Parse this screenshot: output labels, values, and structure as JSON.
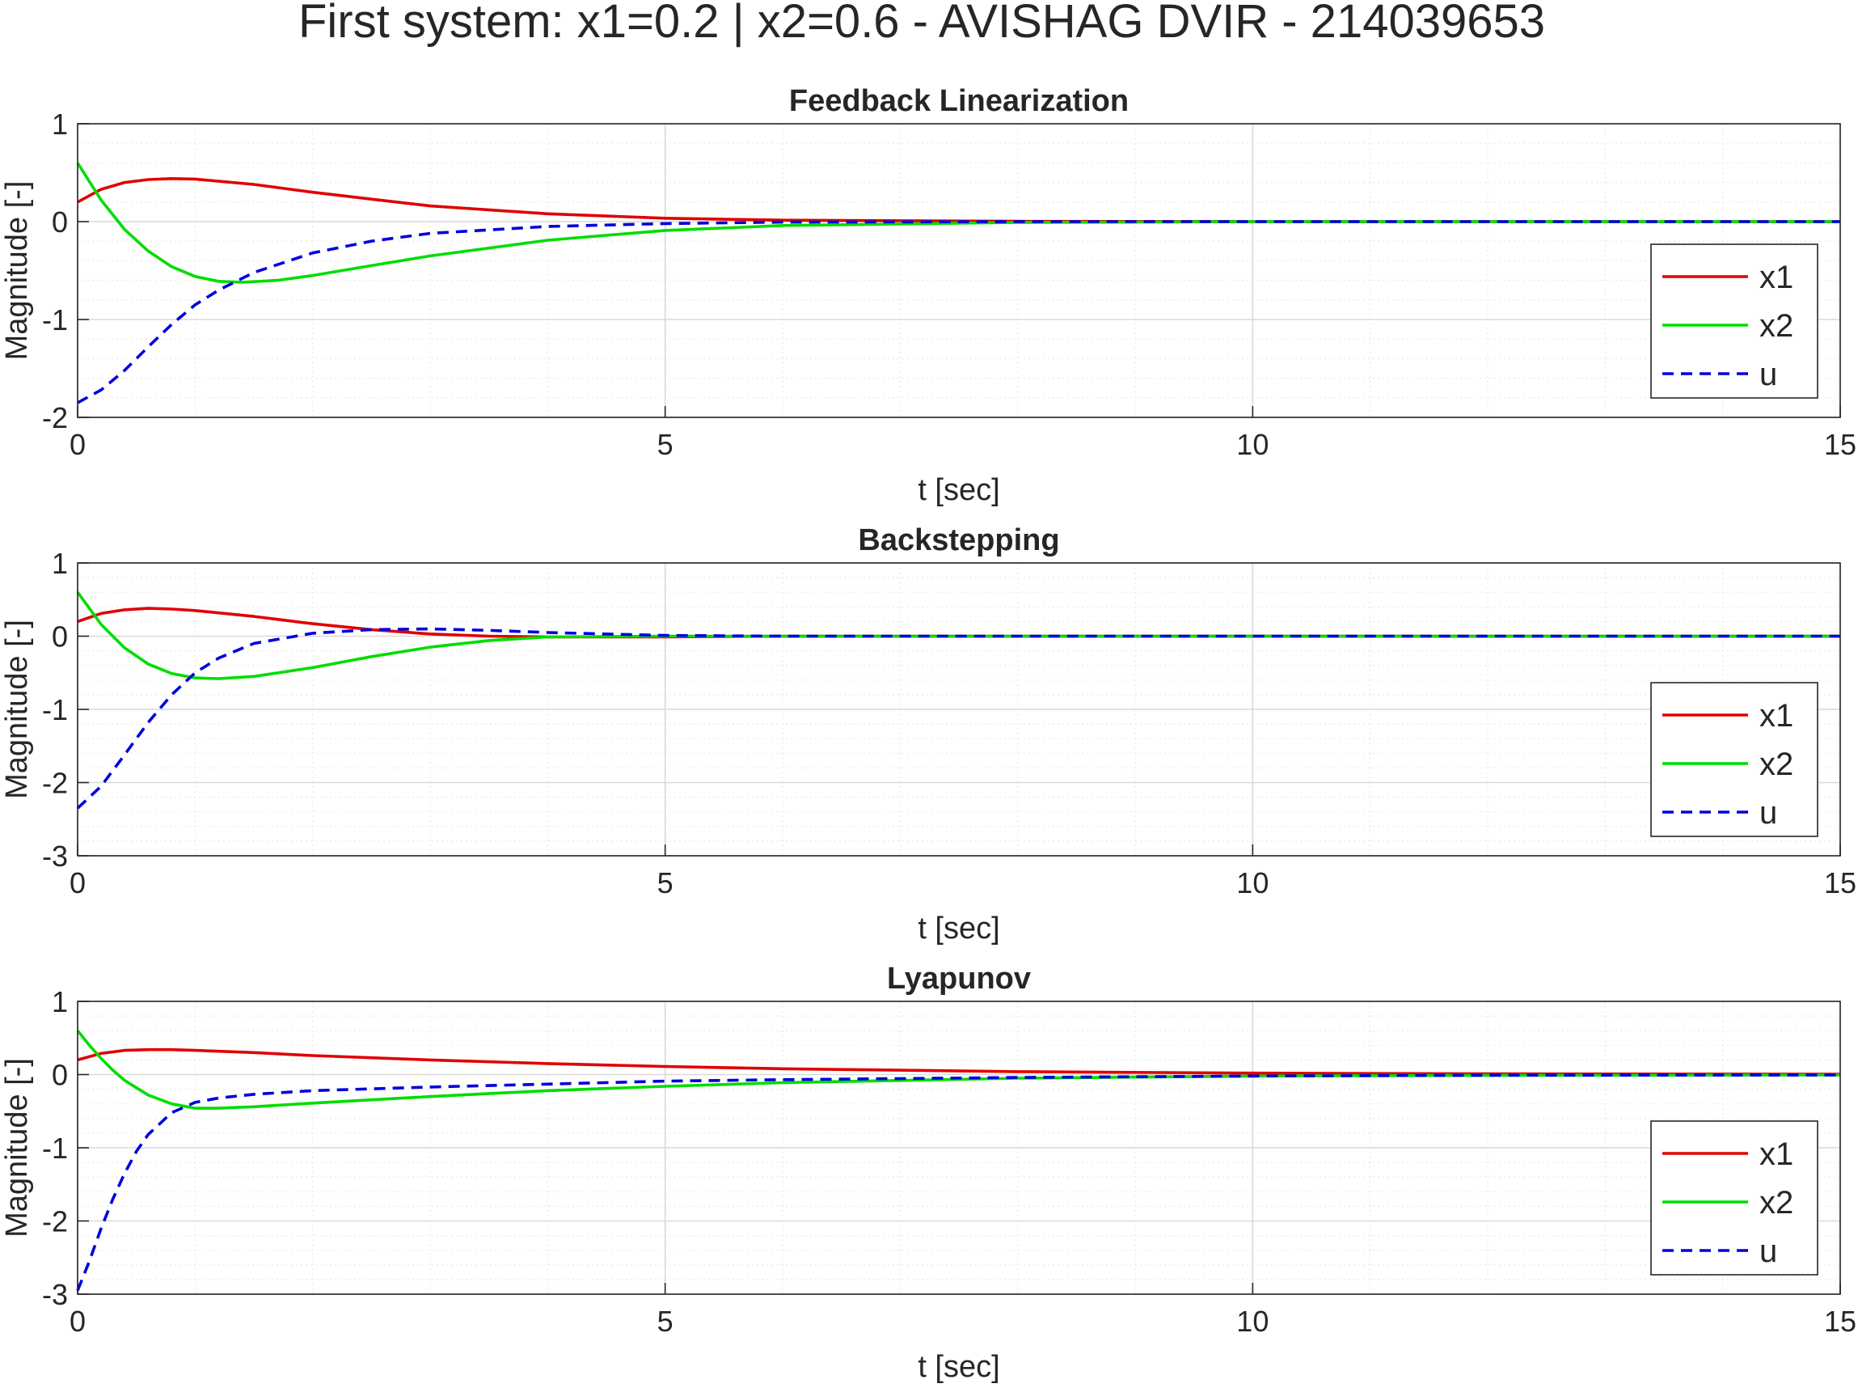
{
  "figure": {
    "title": "First system: x1=0.2 | x2=0.6 - AVISHAG DVIR - 214039653"
  },
  "colors": {
    "x1": "#e00000",
    "x2": "#00dd00",
    "u": "#0000dd",
    "axis": "#262626",
    "grid_major": "#d9d9d9",
    "grid_minor": "#e9e9e9"
  },
  "chart_data": [
    {
      "type": "line",
      "title": "Feedback Linearization",
      "xlabel": "t [sec]",
      "ylabel": "Magnitude [-]",
      "xlim": [
        0,
        15
      ],
      "ylim": [
        -2,
        1
      ],
      "xticks": [
        0,
        5,
        10,
        15
      ],
      "yticks": [
        -2,
        -1,
        0,
        1
      ],
      "grid": true,
      "minor_grid": true,
      "legend_position": "bottom-right",
      "series": [
        {
          "name": "x1",
          "style": "solid",
          "color": "#e00000",
          "x": [
            0,
            0.2,
            0.4,
            0.6,
            0.8,
            1.0,
            1.5,
            2.0,
            2.5,
            3.0,
            4.0,
            5.0,
            6.0,
            8.0,
            10.0,
            15.0
          ],
          "y": [
            0.2,
            0.33,
            0.4,
            0.43,
            0.44,
            0.435,
            0.38,
            0.3,
            0.23,
            0.16,
            0.08,
            0.035,
            0.015,
            0.003,
            0.0,
            0.0
          ]
        },
        {
          "name": "x2",
          "style": "solid",
          "color": "#00dd00",
          "x": [
            0,
            0.2,
            0.4,
            0.6,
            0.8,
            1.0,
            1.2,
            1.4,
            1.7,
            2.0,
            2.5,
            3.0,
            4.0,
            5.0,
            6.0,
            8.0,
            10.0,
            15.0
          ],
          "y": [
            0.6,
            0.22,
            -0.08,
            -0.3,
            -0.46,
            -0.56,
            -0.61,
            -0.62,
            -0.6,
            -0.55,
            -0.45,
            -0.35,
            -0.19,
            -0.09,
            -0.04,
            -0.008,
            0.0,
            0.0
          ]
        },
        {
          "name": "u",
          "style": "dashed",
          "color": "#0000dd",
          "x": [
            0,
            0.2,
            0.4,
            0.6,
            0.8,
            1.0,
            1.2,
            1.5,
            2.0,
            2.5,
            3.0,
            4.0,
            5.0,
            6.0,
            8.0,
            10.0,
            15.0
          ],
          "y": [
            -1.85,
            -1.72,
            -1.52,
            -1.28,
            -1.05,
            -0.85,
            -0.7,
            -0.52,
            -0.32,
            -0.2,
            -0.12,
            -0.05,
            -0.02,
            -0.005,
            0.0,
            0.0,
            0.0
          ]
        }
      ]
    },
    {
      "type": "line",
      "title": "Backstepping",
      "xlabel": "t [sec]",
      "ylabel": "Magnitude [-]",
      "xlim": [
        0,
        15
      ],
      "ylim": [
        -3,
        1
      ],
      "xticks": [
        0,
        5,
        10,
        15
      ],
      "yticks": [
        -3,
        -2,
        -1,
        0,
        1
      ],
      "grid": true,
      "minor_grid": true,
      "legend_position": "bottom-right",
      "series": [
        {
          "name": "x1",
          "style": "solid",
          "color": "#e00000",
          "x": [
            0,
            0.2,
            0.4,
            0.6,
            0.8,
            1.0,
            1.5,
            2.0,
            2.5,
            3.0,
            3.5,
            4.0,
            5.0,
            6.0,
            8.0,
            15.0
          ],
          "y": [
            0.2,
            0.31,
            0.36,
            0.38,
            0.37,
            0.35,
            0.27,
            0.17,
            0.09,
            0.03,
            0.0,
            -0.01,
            -0.01,
            0.0,
            0.0,
            0.0
          ]
        },
        {
          "name": "x2",
          "style": "solid",
          "color": "#00dd00",
          "x": [
            0,
            0.2,
            0.4,
            0.6,
            0.8,
            1.0,
            1.2,
            1.5,
            2.0,
            2.5,
            3.0,
            3.5,
            4.0,
            5.0,
            6.0,
            8.0,
            15.0
          ],
          "y": [
            0.6,
            0.16,
            -0.16,
            -0.38,
            -0.51,
            -0.57,
            -0.58,
            -0.55,
            -0.43,
            -0.28,
            -0.15,
            -0.06,
            -0.01,
            0.0,
            0.0,
            0.0,
            0.0
          ]
        },
        {
          "name": "u",
          "style": "dashed",
          "color": "#0000dd",
          "x": [
            0,
            0.2,
            0.4,
            0.6,
            0.8,
            1.0,
            1.2,
            1.5,
            2.0,
            2.5,
            3.0,
            3.5,
            4.0,
            5.0,
            6.0,
            8.0,
            15.0
          ],
          "y": [
            -2.35,
            -2.05,
            -1.62,
            -1.18,
            -0.8,
            -0.5,
            -0.3,
            -0.1,
            0.04,
            0.09,
            0.1,
            0.08,
            0.05,
            0.01,
            0.0,
            0.0,
            0.0
          ]
        }
      ]
    },
    {
      "type": "line",
      "title": "Lyapunov",
      "xlabel": "t [sec]",
      "ylabel": "Magnitude [-]",
      "xlim": [
        0,
        15
      ],
      "ylim": [
        -3,
        1
      ],
      "xticks": [
        0,
        5,
        10,
        15
      ],
      "yticks": [
        -3,
        -2,
        -1,
        0,
        1
      ],
      "grid": true,
      "minor_grid": true,
      "legend_position": "bottom-right",
      "series": [
        {
          "name": "x1",
          "style": "solid",
          "color": "#e00000",
          "x": [
            0,
            0.2,
            0.4,
            0.6,
            0.8,
            1.0,
            1.5,
            2.0,
            3.0,
            4.0,
            5.0,
            6.0,
            8.0,
            10.0,
            12.0,
            15.0
          ],
          "y": [
            0.2,
            0.29,
            0.33,
            0.34,
            0.34,
            0.33,
            0.3,
            0.26,
            0.2,
            0.15,
            0.11,
            0.08,
            0.04,
            0.02,
            0.01,
            0.005
          ]
        },
        {
          "name": "x2",
          "style": "solid",
          "color": "#00dd00",
          "x": [
            0,
            0.1,
            0.2,
            0.3,
            0.4,
            0.6,
            0.8,
            1.0,
            1.2,
            1.5,
            2.0,
            3.0,
            4.0,
            5.0,
            6.0,
            8.0,
            10.0,
            12.0,
            15.0
          ],
          "y": [
            0.6,
            0.4,
            0.22,
            0.06,
            -0.08,
            -0.28,
            -0.4,
            -0.46,
            -0.46,
            -0.44,
            -0.39,
            -0.3,
            -0.22,
            -0.16,
            -0.11,
            -0.05,
            -0.02,
            -0.01,
            -0.004
          ]
        },
        {
          "name": "u",
          "style": "dashed",
          "color": "#0000dd",
          "x": [
            0,
            0.1,
            0.2,
            0.3,
            0.4,
            0.5,
            0.6,
            0.8,
            1.0,
            1.2,
            1.5,
            2.0,
            3.0,
            4.0,
            5.0,
            6.0,
            8.0,
            10.0,
            12.0,
            15.0
          ],
          "y": [
            -2.95,
            -2.55,
            -2.1,
            -1.7,
            -1.35,
            -1.05,
            -0.82,
            -0.52,
            -0.38,
            -0.32,
            -0.27,
            -0.22,
            -0.17,
            -0.13,
            -0.09,
            -0.07,
            -0.04,
            -0.02,
            -0.01,
            -0.005
          ]
        }
      ]
    }
  ]
}
